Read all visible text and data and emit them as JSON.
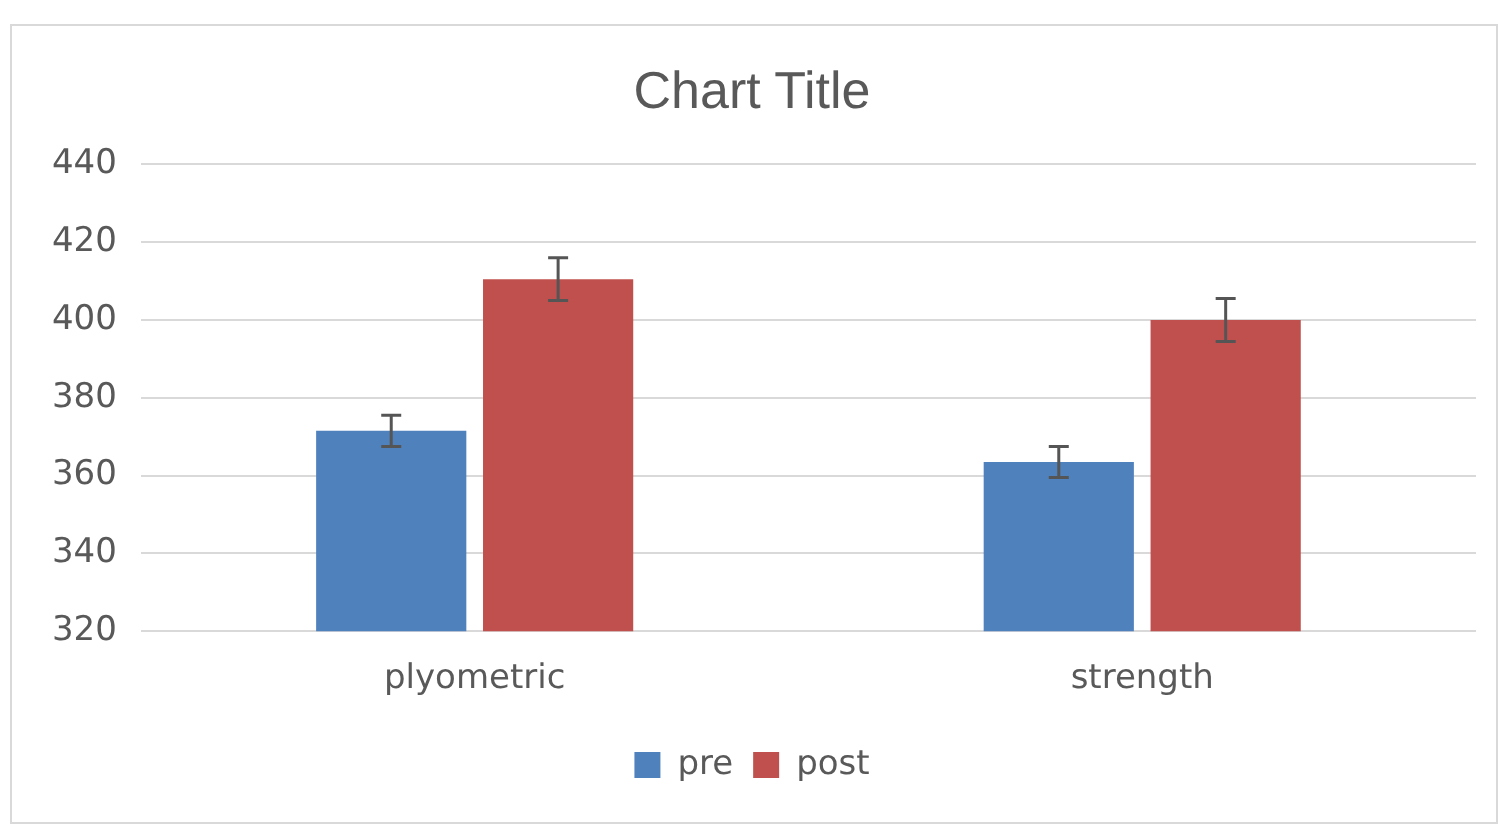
{
  "chart_data": {
    "type": "bar",
    "title": "Chart Title",
    "categories": [
      "plyometric",
      "strength"
    ],
    "series": [
      {
        "name": "pre",
        "color": "#4f81bd",
        "values": [
          371.5,
          363.5
        ],
        "errors": [
          4,
          4
        ]
      },
      {
        "name": "post",
        "color": "#c0504d",
        "values": [
          410.5,
          400
        ],
        "errors": [
          5.5,
          5.5
        ]
      }
    ],
    "ylim": [
      320,
      440
    ],
    "yticks": [
      320,
      340,
      360,
      380,
      400,
      420,
      440
    ],
    "grid": "y",
    "legend": "bottom"
  }
}
